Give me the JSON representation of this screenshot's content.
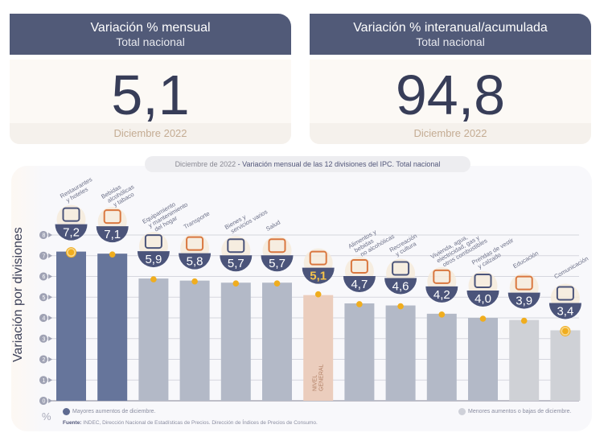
{
  "kpis": [
    {
      "title": "Variación % mensual",
      "subtitle": "Total nacional",
      "value": "5,1",
      "period": "Diciembre 2022"
    },
    {
      "title": "Variación % interanual/acumulada",
      "subtitle": "Total nacional",
      "value": "94,8",
      "period": "Diciembre 2022"
    }
  ],
  "chart_header": {
    "date": "Diciembre de 2022",
    "separator": " - ",
    "title": "Variación mensual de las 12 divisiones del IPC. Total nacional"
  },
  "legend": {
    "high": {
      "label": "Mayores aumentos de diciembre.",
      "color": "#5f6b91"
    },
    "low": {
      "label": "Menores aumentos o bajas de diciembre.",
      "color": "#cfd1d9"
    }
  },
  "source": {
    "label": "Fuente:",
    "text": " INDEC, Dirección Nacional de Estadísticas de Precios. Dirección de Índices de Precios de Consumo."
  },
  "colors": {
    "header": "#515a78",
    "high_bar": "#66759b",
    "mid_bar": "#b3b9c7",
    "low_bar": "#cfd1d6",
    "general_bar": "#ebcdbd",
    "badge": "#4b547a",
    "dot": "#f0ad1e",
    "icon": "#d9773f"
  },
  "chart_data": {
    "type": "bar",
    "title": "Diciembre de 2022 - Variación mensual de las 12 divisiones del IPC. Total nacional",
    "xlabel": "",
    "ylabel": "Variación por divisiones",
    "yunit": "%",
    "ylim": [
      0,
      8
    ],
    "yticks": [
      0,
      1,
      2,
      3,
      4,
      5,
      6,
      7,
      8
    ],
    "grid": true,
    "legend_position": "bottom",
    "categories": [
      "Restaurantes y hoteles",
      "Bebidas alcohólicas y tabaco",
      "Equipamiento y mantenimiento del hogar",
      "Transporte",
      "Bienes y servicios varios",
      "Salud",
      "Nivel general",
      "Alimentos y bebidas no alcohólicas",
      "Recreación y cultura",
      "Vivienda, agua, electricidad, gas y otros combustibles",
      "Prendas de vestir y calzado",
      "Educación",
      "Comunicación"
    ],
    "category_lines": [
      [
        "Restaurantes",
        "y hoteles"
      ],
      [
        "Bebidas",
        "alcohólicas",
        "y tabaco"
      ],
      [
        "Equipamiento",
        "y mantenimiento",
        "del hogar"
      ],
      [
        "Transporte"
      ],
      [
        "Bienes y",
        "servicios varios"
      ],
      [
        "Salud"
      ],
      [],
      [
        "Alimentos y",
        "bebidas",
        "no alcohólicas"
      ],
      [
        "Recreación",
        "y cultura"
      ],
      [
        "Vivienda, agua,",
        "electricidad, gas y",
        "otros combustibles"
      ],
      [
        "Prendas de vestir",
        "y calzado"
      ],
      [
        "Educación"
      ],
      [
        "Comunicación"
      ]
    ],
    "values": [
      7.2,
      7.1,
      5.9,
      5.8,
      5.7,
      5.7,
      5.1,
      4.7,
      4.6,
      4.2,
      4.0,
      3.9,
      3.4
    ],
    "labels": [
      "7,2",
      "7,1",
      "5,9",
      "5,8",
      "5,7",
      "5,7",
      "5,1",
      "4,7",
      "4,6",
      "4,2",
      "4,0",
      "3,9",
      "3,4"
    ],
    "groups": [
      "high",
      "high",
      "mid",
      "mid",
      "mid",
      "mid",
      "general",
      "mid",
      "mid",
      "mid",
      "mid",
      "low",
      "low"
    ],
    "general_bar_label": [
      "NIVEL",
      "GENERAL"
    ],
    "highlighted_extremes": [
      "Restaurantes y hoteles",
      "Comunicación"
    ]
  }
}
